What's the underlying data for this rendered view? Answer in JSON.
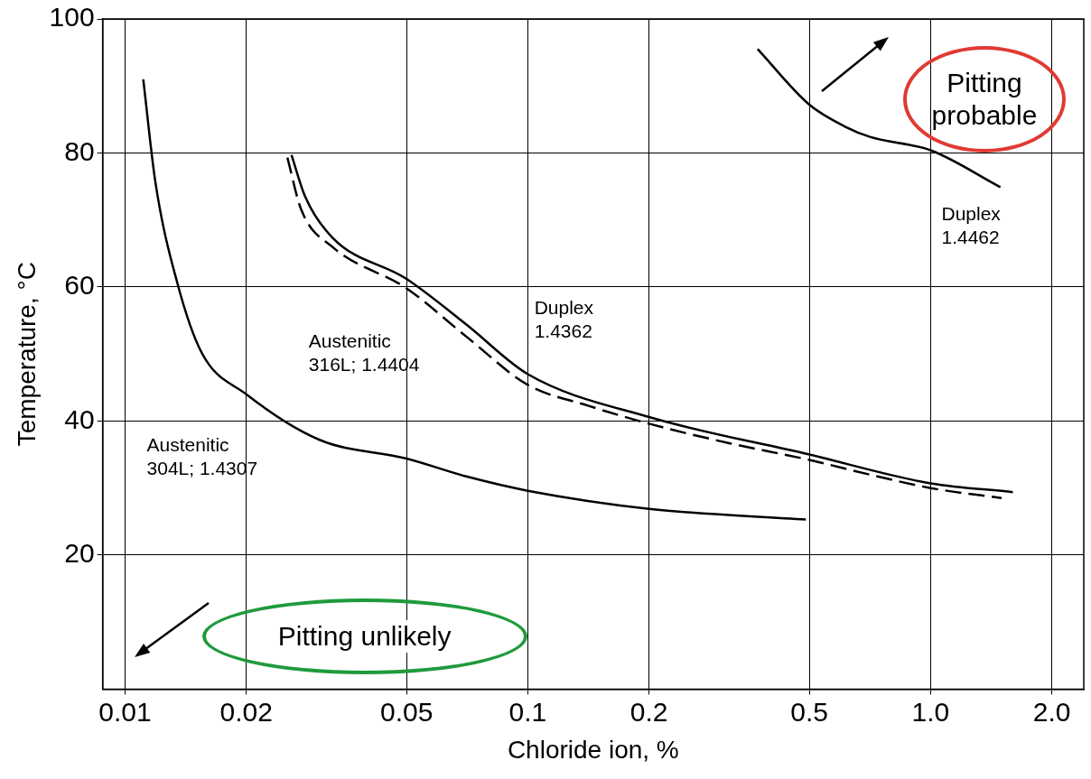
{
  "chart_data": {
    "type": "line",
    "xlabel": "Chloride ion, %",
    "ylabel": "Temperature, °C",
    "log": "x",
    "xlim": [
      0.0088,
      2.4
    ],
    "xticks": [
      0.01,
      0.02,
      0.05,
      0.1,
      0.2,
      0.5,
      {
        "value": 1,
        "label": "1.0"
      },
      {
        "value": 2,
        "label": "2.0"
      }
    ],
    "ylim": [
      0,
      100
    ],
    "yticks": [
      20,
      40,
      60,
      80,
      100
    ],
    "grid": true,
    "legend": false,
    "marker": "none",
    "series": [
      {
        "name": "Austenitic 304L; 1.4307",
        "color": "#000000",
        "line_style": "solid",
        "x": [
          0.0111,
          0.0119,
          0.0135,
          0.0155,
          0.02,
          0.0304,
          0.05,
          0.0707,
          0.1,
          0.2,
          0.49
        ],
        "values": [
          91,
          75.6,
          60.5,
          50.2,
          44,
          37.2,
          34.4,
          31.7,
          29.6,
          26.9,
          25.3
        ]
      },
      {
        "name": "Austenitic 316L; 1.4404",
        "color": "#000000",
        "line_style": "dashed",
        "x": [
          0.0253,
          0.0274,
          0.0327,
          0.05,
          0.0707,
          0.1,
          0.141,
          0.2,
          0.316,
          0.5,
          0.707,
          1.0,
          1.5
        ],
        "values": [
          79.3,
          71.5,
          66,
          59.8,
          52.5,
          45.4,
          42.3,
          39.6,
          36.7,
          34.2,
          32,
          30,
          28.5
        ]
      },
      {
        "name": "Duplex 1.4362",
        "color": "#000000",
        "line_style": "solid",
        "x": [
          0.0259,
          0.028,
          0.0327,
          0.05,
          0.0707,
          0.1,
          0.2,
          0.5,
          1.0,
          1.6
        ],
        "values": [
          79.7,
          73.5,
          67.4,
          61.2,
          54.3,
          47,
          40.6,
          35,
          30.7,
          29.4
        ]
      },
      {
        "name": "Duplex 1.4462",
        "color": "#000000",
        "line_style": "solid",
        "x": [
          0.372,
          0.5,
          0.62,
          0.707,
          1.0,
          1.49
        ],
        "values": [
          95.5,
          87.2,
          83.8,
          82.4,
          80.4,
          74.9
        ]
      }
    ],
    "annotations": [
      "Pitting\nprobable",
      "Pitting unlikely"
    ]
  }
}
